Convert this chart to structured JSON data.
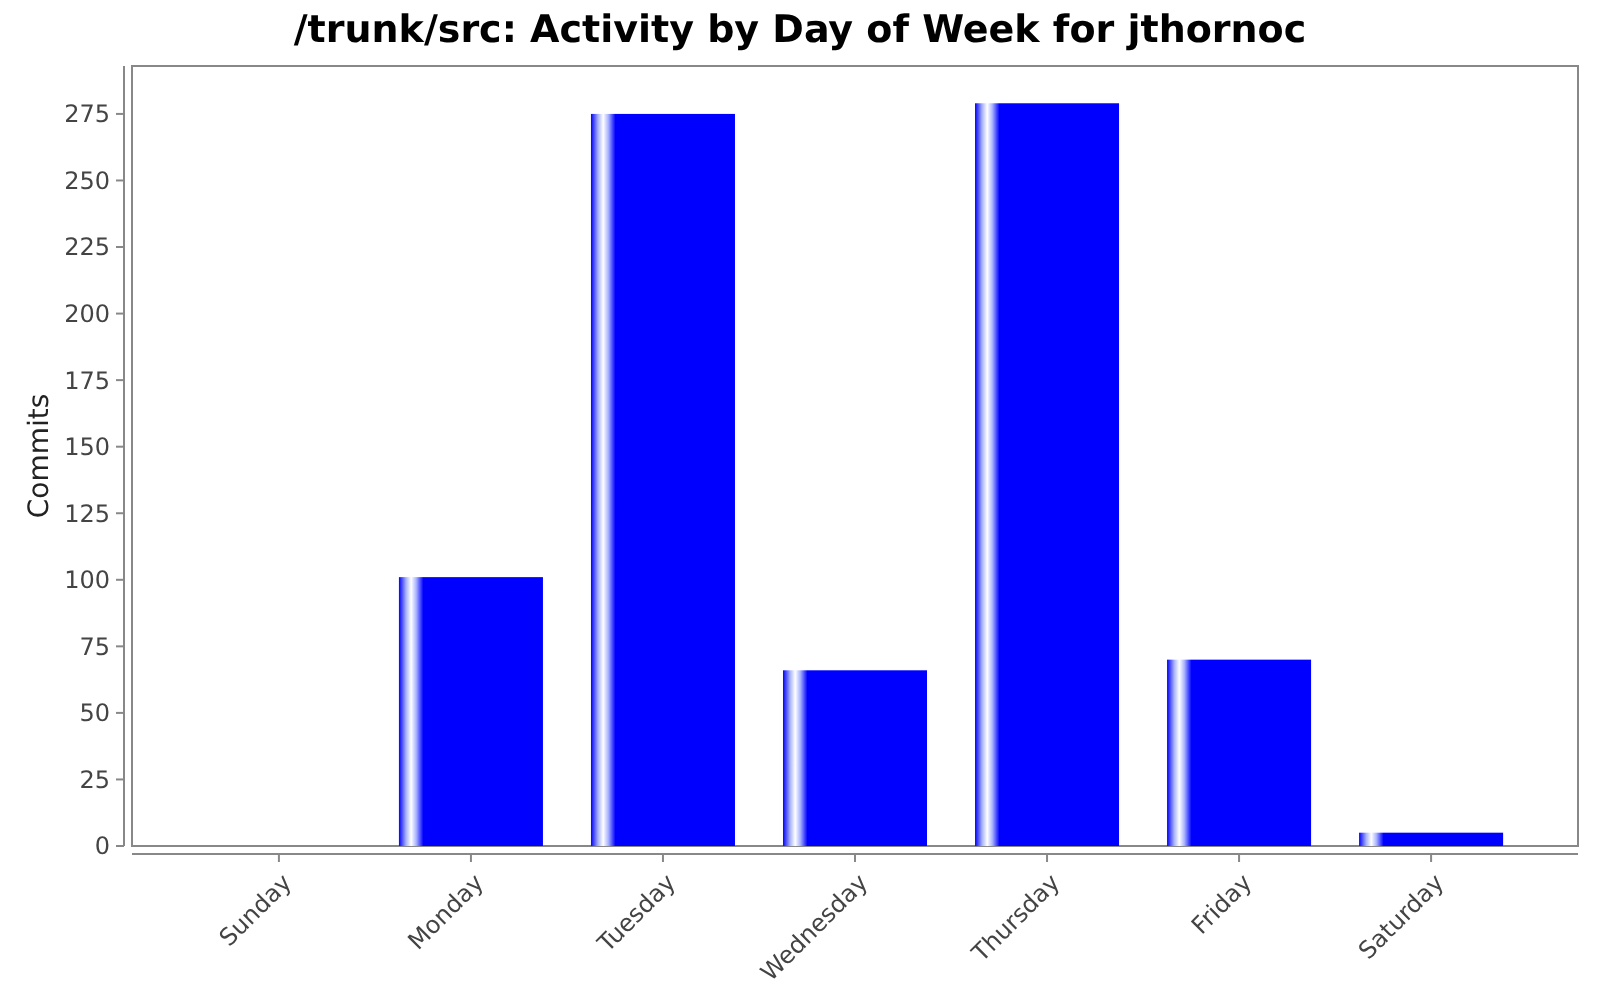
{
  "chart_data": {
    "type": "bar",
    "title": "/trunk/src: Activity by Day of Week for jthornoc",
    "ylabel": "Commits",
    "categories": [
      "Sunday",
      "Monday",
      "Tuesday",
      "Wednesday",
      "Thursday",
      "Friday",
      "Saturday"
    ],
    "values": [
      0,
      101,
      275,
      66,
      279,
      70,
      5
    ],
    "color": "#0000ff",
    "ylim": [
      0,
      293
    ],
    "yticks": [
      0,
      25,
      50,
      75,
      100,
      125,
      150,
      175,
      200,
      225,
      250,
      275
    ]
  }
}
